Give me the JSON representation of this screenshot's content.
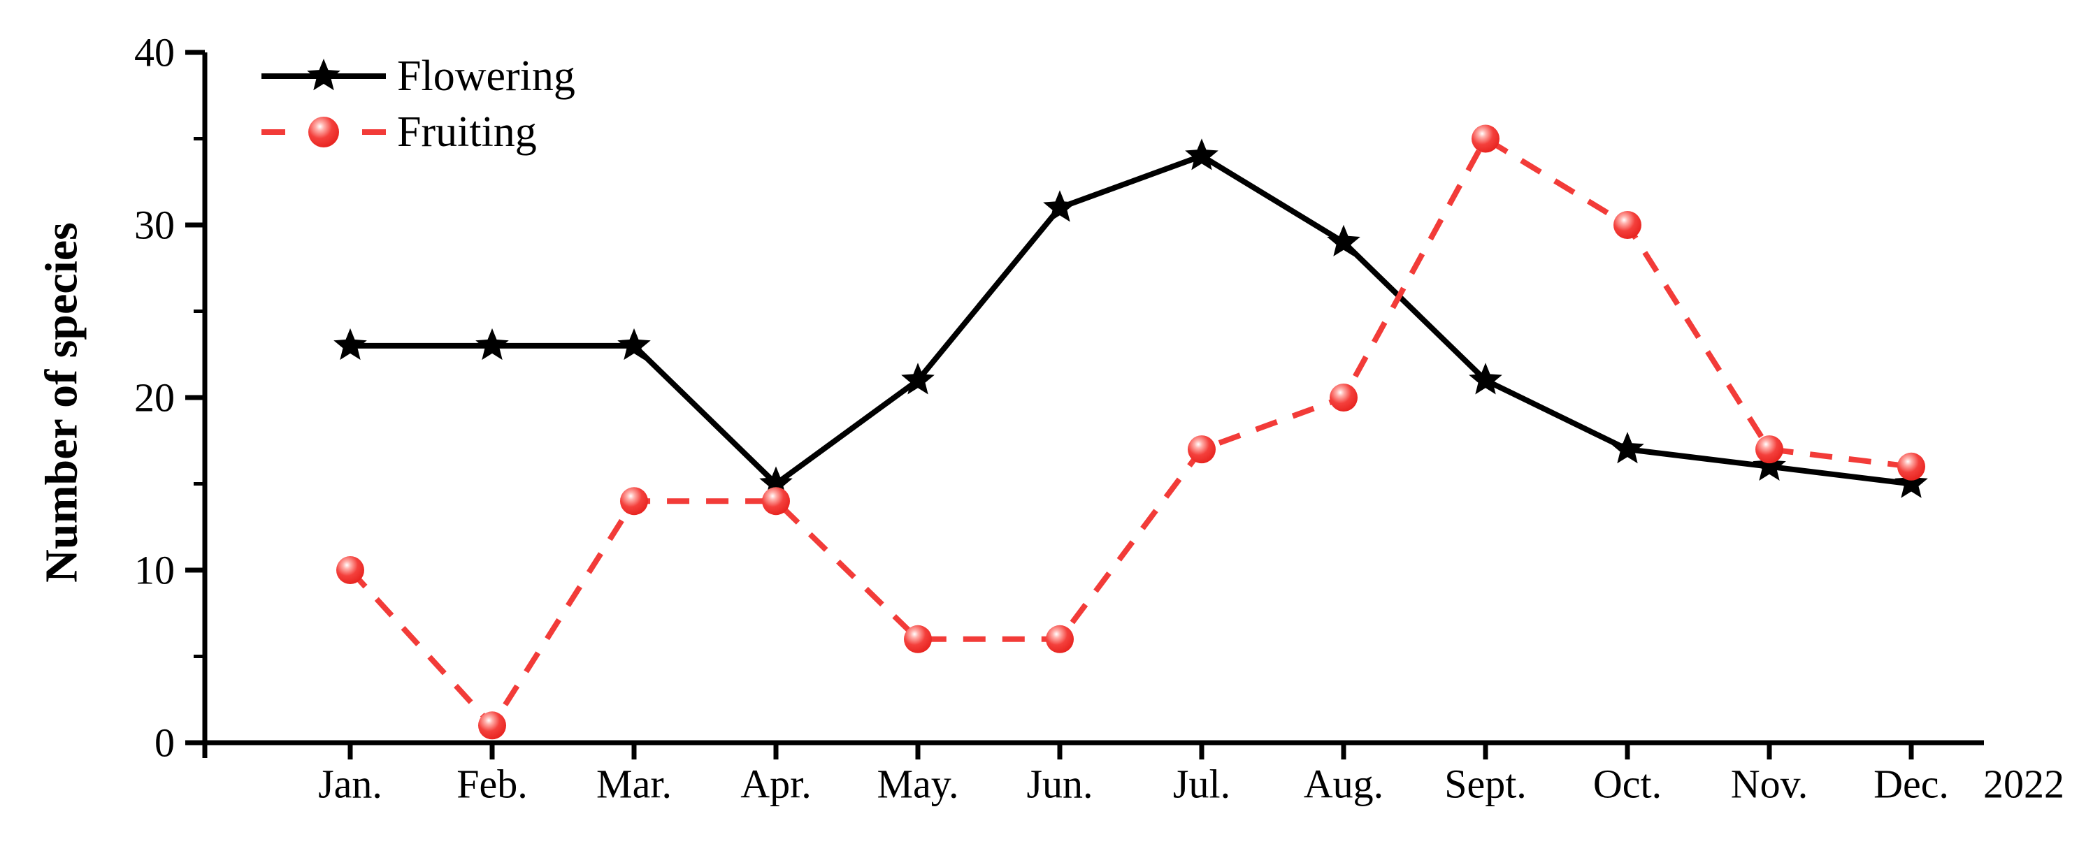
{
  "chart_data": {
    "type": "line",
    "title": "",
    "ylabel": "Number of species",
    "year_label": "2022",
    "categories": [
      "Jan.",
      "Feb.",
      "Mar.",
      "Apr.",
      "May.",
      "Jun.",
      "Jul.",
      "Aug.",
      "Sept.",
      "Oct.",
      "Nov.",
      "Dec."
    ],
    "ylim": [
      0,
      40
    ],
    "y_major_ticks": [
      0,
      10,
      20,
      30,
      40
    ],
    "y_minor_ticks": [
      5,
      15,
      25,
      35
    ],
    "grid": false,
    "legend_position": "top-left-inside",
    "series": [
      {
        "name": "Flowering",
        "values": [
          23,
          23,
          23,
          15,
          21,
          31,
          34,
          29,
          21,
          17,
          16,
          15
        ],
        "color": "#000000",
        "line_style": "solid",
        "marker": "star"
      },
      {
        "name": "Fruiting",
        "values": [
          10,
          1,
          14,
          14,
          6,
          6,
          17,
          20,
          35,
          30,
          17,
          16
        ],
        "color": "#f23b38",
        "line_style": "dashed",
        "marker": "ball"
      }
    ]
  },
  "colors": {
    "background": "#ffffff",
    "axis": "#000000",
    "text": "#000000",
    "fruiting_red": "#f23b38",
    "ball_edge_red": "#e51f1b",
    "ball_highlight": "#ffffff"
  }
}
